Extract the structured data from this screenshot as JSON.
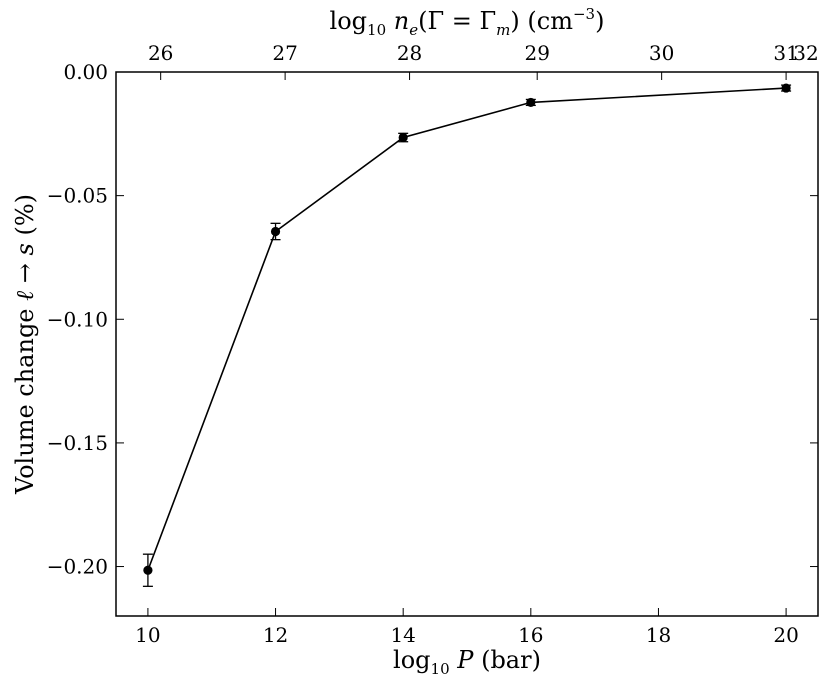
{
  "chart_data": {
    "type": "line",
    "title": "",
    "xlabel": {
      "pre": "log",
      "sub": "10",
      "var": "P",
      "post": "(bar)"
    },
    "ylabel": {
      "pre": "Volume change ",
      "sym1": "ℓ",
      "arrow": " → ",
      "sym2": "s",
      "post": " (%)"
    },
    "top_xlabel": {
      "pre": "log",
      "sub": "10",
      "var": "n",
      "var_sub": "e",
      "mid1": "(Γ = Γ",
      "mid1_sub": "m",
      "mid2": ")  (cm",
      "sup": "−3",
      "post": ")"
    },
    "xlim": [
      9.5,
      20.5
    ],
    "ylim": [
      -0.22,
      0.0
    ],
    "x_ticks": [
      10,
      12,
      14,
      16,
      18,
      20
    ],
    "y_ticks": [
      0.0,
      -0.05,
      -0.1,
      -0.15,
      -0.2
    ],
    "y_tick_labels": [
      "0.00",
      "−0.05",
      "−0.10",
      "−0.15",
      "−0.20"
    ],
    "top_x_ticks": [
      {
        "label": "26",
        "x": 10.2
      },
      {
        "label": "27",
        "x": 12.15
      },
      {
        "label": "28",
        "x": 14.1
      },
      {
        "label": "29",
        "x": 16.1
      },
      {
        "label": "30",
        "x": 18.05
      },
      {
        "label": "31",
        "x": 20.0
      },
      {
        "label": "32",
        "x": 21.95
      }
    ],
    "series": [
      {
        "x": [
          10,
          12,
          14,
          16,
          20
        ],
        "y": [
          -0.2015,
          -0.0645,
          -0.0265,
          -0.0123,
          -0.0065
        ],
        "yerr": [
          0.0065,
          0.0033,
          0.0017,
          0.0012,
          0.0012
        ]
      }
    ],
    "grid": false,
    "legend": "none"
  },
  "colors": {
    "line": "#000000",
    "marker": "#000000",
    "axes": "#000000",
    "background": "#ffffff"
  }
}
